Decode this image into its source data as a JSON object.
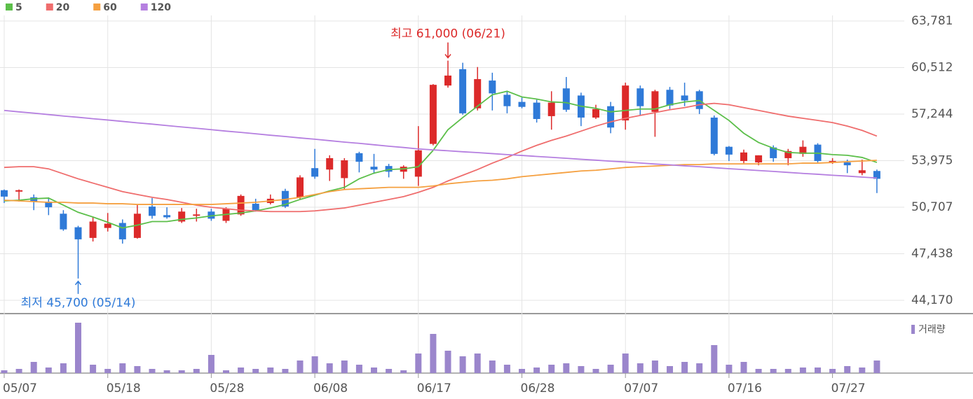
{
  "chart_data": {
    "type": "candlestick",
    "categories": [
      "05/07",
      null,
      null,
      null,
      null,
      null,
      null,
      "05/18",
      null,
      null,
      null,
      null,
      null,
      null,
      "05/28",
      null,
      null,
      null,
      null,
      null,
      null,
      "06/08",
      null,
      null,
      null,
      null,
      null,
      null,
      "06/17",
      null,
      null,
      null,
      null,
      null,
      null,
      "06/28",
      null,
      null,
      null,
      null,
      null,
      null,
      "07/07",
      null,
      null,
      null,
      null,
      null,
      null,
      "07/16",
      null,
      null,
      null,
      null,
      null,
      null,
      "07/27",
      null,
      null,
      null
    ],
    "open": [
      51900,
      51800,
      51400,
      51100,
      50250,
      49300,
      48550,
      49250,
      49600,
      48550,
      50750,
      50150,
      49700,
      50150,
      50400,
      49750,
      50200,
      50950,
      51000,
      51850,
      51400,
      53450,
      53350,
      52750,
      54500,
      53550,
      53600,
      53200,
      52850,
      55150,
      59250,
      60400,
      57650,
      59600,
      58600,
      58100,
      58050,
      57100,
      59050,
      58550,
      57000,
      57800,
      56800,
      59050,
      57400,
      58950,
      58550,
      58850,
      57000,
      54950,
      53950,
      53850,
      54900,
      54150,
      54450,
      55100,
      53850,
      53850,
      53100,
      53250
    ],
    "high": [
      51950,
      51950,
      51600,
      51400,
      50500,
      49400,
      50000,
      50300,
      49850,
      50900,
      51350,
      50700,
      50650,
      50600,
      50600,
      50700,
      51600,
      51300,
      51600,
      52000,
      52950,
      54800,
      54350,
      54150,
      54600,
      54450,
      53750,
      53650,
      56400,
      59350,
      61000,
      60850,
      60550,
      60150,
      58850,
      58400,
      58250,
      58850,
      59850,
      58750,
      57900,
      58100,
      59450,
      59250,
      58950,
      59150,
      59450,
      58950,
      57150,
      55000,
      54750,
      54350,
      55050,
      54800,
      55400,
      55200,
      54150,
      54050,
      54050,
      53350
    ],
    "low": [
      51000,
      51100,
      50500,
      50150,
      49050,
      45700,
      48300,
      49000,
      48150,
      48500,
      49900,
      49900,
      49600,
      49700,
      49750,
      49600,
      50100,
      50400,
      50900,
      50650,
      51250,
      52700,
      52550,
      51950,
      53150,
      53050,
      52800,
      52700,
      52200,
      55050,
      59100,
      57200,
      57500,
      57500,
      57300,
      57650,
      56650,
      56150,
      57400,
      56400,
      56900,
      55900,
      56150,
      57150,
      55650,
      57600,
      57800,
      57250,
      54350,
      53950,
      53800,
      53650,
      53900,
      53650,
      54250,
      53850,
      53750,
      53100,
      52950,
      51700
    ],
    "close": [
      51450,
      51900,
      51100,
      50700,
      49150,
      48450,
      49700,
      49550,
      48450,
      50250,
      50100,
      50000,
      50400,
      50200,
      49900,
      50600,
      51500,
      50500,
      51300,
      50750,
      52800,
      52850,
      54150,
      54000,
      53900,
      53350,
      53200,
      53550,
      54700,
      59300,
      59950,
      57300,
      59700,
      58700,
      57800,
      57750,
      56900,
      58050,
      57550,
      57000,
      57600,
      56300,
      59250,
      57800,
      58850,
      57850,
      58200,
      57600,
      54450,
      54400,
      54550,
      54350,
      54150,
      54650,
      54950,
      53950,
      53950,
      53650,
      53300,
      52700
    ],
    "up_color": "#dc2a2a",
    "down_color": "#2f7ad8",
    "ylim": [
      44170,
      63781
    ],
    "yticks": [
      {
        "value": 63781,
        "label": "63,781"
      },
      {
        "value": 60512,
        "label": "60,512"
      },
      {
        "value": 57244,
        "label": "57,244"
      },
      {
        "value": 53975,
        "label": "53,975"
      },
      {
        "value": 50707,
        "label": "50,707"
      },
      {
        "value": 47438,
        "label": "47,438"
      },
      {
        "value": 44170,
        "label": "44,170"
      }
    ],
    "grid": true,
    "series": [
      {
        "name": "5",
        "color": "#5cbf4a",
        "values": [
          51150,
          51200,
          51300,
          51350,
          50850,
          50350,
          50020,
          49650,
          49250,
          49450,
          49700,
          49700,
          49850,
          49950,
          50100,
          50200,
          50300,
          50450,
          50650,
          50900,
          51250,
          51550,
          51850,
          52100,
          52700,
          53100,
          53350,
          53400,
          53550,
          54700,
          56150,
          57000,
          57800,
          58600,
          58850,
          58450,
          58300,
          58100,
          58050,
          57800,
          57650,
          57400,
          57500,
          57600,
          57600,
          57900,
          58100,
          58200,
          57500,
          56800,
          55900,
          55250,
          54850,
          54550,
          54500,
          54500,
          54400,
          54350,
          54200,
          53850
        ]
      },
      {
        "name": "20",
        "color": "#ef6d6d",
        "values": [
          53500,
          53550,
          53550,
          53400,
          53050,
          52700,
          52400,
          52100,
          51800,
          51600,
          51400,
          51250,
          51050,
          50850,
          50700,
          50600,
          50500,
          50450,
          50400,
          50400,
          50400,
          50450,
          50550,
          50650,
          50850,
          51050,
          51250,
          51450,
          51750,
          52100,
          52550,
          52950,
          53350,
          53800,
          54200,
          54650,
          55050,
          55400,
          55700,
          56050,
          56400,
          56700,
          56950,
          57150,
          57350,
          57550,
          57700,
          57900,
          58000,
          57900,
          57700,
          57500,
          57300,
          57100,
          56950,
          56800,
          56650,
          56400,
          56100,
          55700
        ]
      },
      {
        "name": "60",
        "color": "#f5a040",
        "values": [
          51200,
          51150,
          51100,
          51050,
          51050,
          51000,
          51000,
          50950,
          50950,
          50900,
          50900,
          50900,
          50900,
          50900,
          50900,
          50950,
          51000,
          51050,
          51150,
          51250,
          51400,
          51600,
          51800,
          51950,
          52000,
          52050,
          52100,
          52100,
          52100,
          52200,
          52350,
          52450,
          52550,
          52600,
          52700,
          52850,
          52950,
          53050,
          53150,
          53250,
          53300,
          53400,
          53500,
          53550,
          53600,
          53650,
          53700,
          53700,
          53750,
          53750,
          53750,
          53750,
          53750,
          53750,
          53800,
          53800,
          53850,
          53900,
          53950,
          54000
        ]
      },
      {
        "name": "120",
        "color": "#b57fe0",
        "values": [
          57500,
          57400,
          57310,
          57210,
          57110,
          57020,
          56920,
          56830,
          56730,
          56630,
          56540,
          56440,
          56340,
          56250,
          56150,
          56050,
          55960,
          55860,
          55760,
          55670,
          55570,
          55480,
          55380,
          55280,
          55190,
          55090,
          54990,
          54900,
          54800,
          54730,
          54670,
          54600,
          54540,
          54470,
          54400,
          54340,
          54270,
          54210,
          54140,
          54070,
          54010,
          53940,
          53880,
          53810,
          53740,
          53680,
          53610,
          53550,
          53480,
          53410,
          53350,
          53280,
          53220,
          53150,
          53080,
          53020,
          52950,
          52890,
          52820,
          52760
        ]
      }
    ],
    "volume": {
      "name": "거래량",
      "color": "#9b86cc",
      "values": [
        4,
        6,
        16,
        8,
        14,
        72,
        12,
        6,
        14,
        10,
        6,
        4,
        4,
        6,
        26,
        4,
        8,
        6,
        8,
        6,
        18,
        24,
        14,
        18,
        12,
        8,
        6,
        4,
        28,
        56,
        32,
        24,
        28,
        18,
        12,
        6,
        8,
        12,
        14,
        10,
        6,
        12,
        28,
        14,
        18,
        10,
        16,
        14,
        40,
        12,
        16,
        6,
        6,
        6,
        8,
        8,
        6,
        10,
        8,
        18
      ]
    },
    "annotations": [
      {
        "text": "최고 61,000 (06/21)"
      },
      {
        "text": "최저 45,700 (05/14)"
      }
    ]
  }
}
